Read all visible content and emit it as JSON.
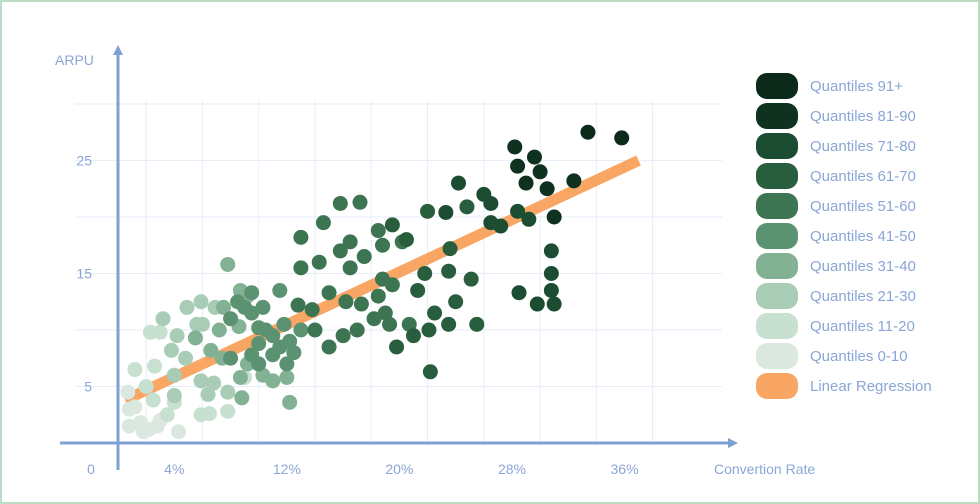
{
  "chart_data": {
    "type": "scatter",
    "title": "",
    "xlabel": "Convertion Rate",
    "ylabel": "ARPU",
    "x_unit": "%",
    "xlim": [
      0,
      40
    ],
    "ylim": [
      0,
      30
    ],
    "x_ticks": [
      0,
      4,
      12,
      20,
      28,
      36
    ],
    "x_tick_labels": [
      "0",
      "4%",
      "12%",
      "20%",
      "28%",
      "36%"
    ],
    "y_ticks": [
      5,
      15,
      25
    ],
    "y_tick_labels": [
      "5",
      "15",
      "25"
    ],
    "grid": true,
    "legend_position": "right",
    "regression": {
      "name": "Linear Regression",
      "color": "#f9a664",
      "x": [
        0.5,
        37
      ],
      "y": [
        3.8,
        25
      ]
    },
    "series": [
      {
        "name": "Quantiles 91+",
        "color": "#0b2a1a",
        "points": [
          [
            33.4,
            27.5
          ],
          [
            35.8,
            27.0
          ]
        ]
      },
      {
        "name": "Quantiles 81-90",
        "color": "#0e3120",
        "points": [
          [
            28.2,
            26.2
          ],
          [
            29.6,
            25.3
          ],
          [
            30.0,
            24.0
          ],
          [
            32.4,
            23.2
          ],
          [
            28.4,
            24.5
          ],
          [
            29.0,
            23.0
          ],
          [
            30.5,
            22.5
          ],
          [
            31.0,
            20.0
          ]
        ]
      },
      {
        "name": "Quantiles 71-80",
        "color": "#1c4d33",
        "points": [
          [
            24.2,
            23.0
          ],
          [
            26.0,
            22.0
          ],
          [
            26.5,
            21.2
          ],
          [
            28.4,
            20.5
          ],
          [
            29.2,
            19.8
          ],
          [
            27.2,
            19.2
          ],
          [
            23.3,
            20.4
          ],
          [
            30.8,
            17.0
          ],
          [
            30.8,
            15.0
          ],
          [
            30.8,
            13.5
          ],
          [
            31.0,
            12.3
          ],
          [
            29.8,
            12.3
          ],
          [
            28.5,
            13.3
          ],
          [
            26.5,
            19.5
          ]
        ]
      },
      {
        "name": "Quantiles 61-70",
        "color": "#285e3e",
        "points": [
          [
            22.0,
            20.5
          ],
          [
            24.8,
            20.9
          ],
          [
            23.6,
            17.2
          ],
          [
            25.1,
            14.5
          ],
          [
            23.5,
            15.2
          ],
          [
            24.0,
            12.5
          ],
          [
            21.8,
            15.0
          ],
          [
            21.3,
            13.5
          ],
          [
            22.5,
            11.5
          ],
          [
            23.5,
            10.5
          ],
          [
            22.1,
            10.0
          ],
          [
            25.5,
            10.5
          ],
          [
            21.0,
            9.5
          ],
          [
            19.8,
            8.5
          ],
          [
            22.2,
            6.3
          ],
          [
            20.5,
            18.0
          ],
          [
            19.5,
            19.3
          ]
        ]
      },
      {
        "name": "Quantiles 51-60",
        "color": "#3d7451",
        "points": [
          [
            15.8,
            21.2
          ],
          [
            17.2,
            21.3
          ],
          [
            14.6,
            19.5
          ],
          [
            13.0,
            18.2
          ],
          [
            16.5,
            17.8
          ],
          [
            15.8,
            17.0
          ],
          [
            18.5,
            18.8
          ],
          [
            18.8,
            17.5
          ],
          [
            20.2,
            17.8
          ],
          [
            17.5,
            16.5
          ],
          [
            18.8,
            14.5
          ],
          [
            19.5,
            14.0
          ],
          [
            18.5,
            13.0
          ],
          [
            17.3,
            12.3
          ],
          [
            16.2,
            12.5
          ],
          [
            19.0,
            11.5
          ],
          [
            20.7,
            10.5
          ],
          [
            19.3,
            10.5
          ],
          [
            18.2,
            11.0
          ],
          [
            14.3,
            16.0
          ],
          [
            13.0,
            15.5
          ],
          [
            16.5,
            15.5
          ],
          [
            15.0,
            13.3
          ],
          [
            13.8,
            11.8
          ],
          [
            12.8,
            12.2
          ],
          [
            17.0,
            10.0
          ],
          [
            16.0,
            9.5
          ],
          [
            15.0,
            8.5
          ],
          [
            14.0,
            10.0
          ]
        ]
      },
      {
        "name": "Quantiles 41-50",
        "color": "#5b9271",
        "points": [
          [
            13.0,
            10.0
          ],
          [
            11.8,
            10.5
          ],
          [
            12.2,
            9.0
          ],
          [
            11.5,
            8.5
          ],
          [
            10.5,
            10.0
          ],
          [
            11.0,
            9.5
          ],
          [
            11.0,
            7.8
          ],
          [
            12.5,
            8.0
          ],
          [
            12.0,
            7.0
          ],
          [
            10.0,
            10.2
          ],
          [
            10.0,
            8.8
          ],
          [
            9.5,
            11.5
          ],
          [
            9.5,
            13.3
          ],
          [
            11.5,
            13.5
          ],
          [
            10.3,
            12.0
          ],
          [
            9.0,
            12.0
          ],
          [
            8.5,
            12.5
          ],
          [
            8.0,
            11.0
          ],
          [
            8.0,
            7.5
          ],
          [
            9.5,
            7.8
          ],
          [
            10.0,
            7.0
          ]
        ]
      },
      {
        "name": "Quantiles 31-40",
        "color": "#83b193",
        "points": [
          [
            7.8,
            15.8
          ],
          [
            8.7,
            13.5
          ],
          [
            9.2,
            13.0
          ],
          [
            7.5,
            12.0
          ],
          [
            8.6,
            10.3
          ],
          [
            7.2,
            10.0
          ],
          [
            7.4,
            7.5
          ],
          [
            9.2,
            7.0
          ],
          [
            10.3,
            6.0
          ],
          [
            8.7,
            5.8
          ],
          [
            11.0,
            5.5
          ],
          [
            12.0,
            5.8
          ],
          [
            12.2,
            3.6
          ],
          [
            8.8,
            4.0
          ],
          [
            6.6,
            8.2
          ],
          [
            5.5,
            9.3
          ]
        ]
      },
      {
        "name": "Quantiles 21-30",
        "color": "#a8ccb5",
        "points": [
          [
            3.2,
            11.0
          ],
          [
            4.9,
            12.0
          ],
          [
            5.9,
            12.5
          ],
          [
            6.9,
            12.0
          ],
          [
            5.6,
            10.5
          ],
          [
            4.2,
            9.5
          ],
          [
            3.8,
            8.2
          ],
          [
            4.8,
            7.5
          ],
          [
            4.0,
            6.0
          ],
          [
            5.9,
            5.5
          ],
          [
            6.8,
            5.3
          ],
          [
            6.4,
            4.3
          ],
          [
            7.8,
            4.5
          ],
          [
            4.0,
            4.2
          ],
          [
            6.0,
            10.5
          ]
        ]
      },
      {
        "name": "Quantiles 11-20",
        "color": "#c8e0d0",
        "points": [
          [
            2.3,
            9.8
          ],
          [
            3.0,
            9.8
          ],
          [
            2.6,
            6.8
          ],
          [
            2.0,
            5.0
          ],
          [
            1.2,
            6.5
          ],
          [
            2.5,
            3.8
          ],
          [
            3.5,
            2.5
          ],
          [
            4.0,
            3.6
          ],
          [
            5.9,
            2.5
          ],
          [
            6.5,
            2.6
          ],
          [
            7.8,
            2.8
          ],
          [
            9.0,
            5.8
          ]
        ]
      },
      {
        "name": "Quantiles 0-10",
        "color": "#dbe8df",
        "points": [
          [
            0.7,
            4.5
          ],
          [
            0.8,
            3.0
          ],
          [
            1.6,
            1.8
          ],
          [
            0.8,
            1.5
          ],
          [
            1.8,
            1.0
          ],
          [
            2.8,
            1.5
          ],
          [
            3.0,
            2.0
          ],
          [
            4.3,
            1.0
          ],
          [
            1.2,
            3.2
          ],
          [
            2.2,
            1.2
          ]
        ]
      }
    ]
  }
}
